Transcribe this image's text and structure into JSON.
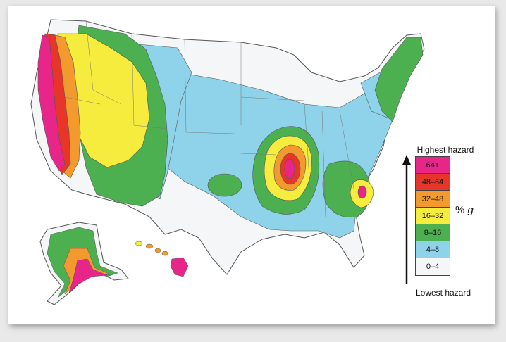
{
  "legend": {
    "top_label": "Highest hazard",
    "bottom_label": "Lowest hazard",
    "unit_prefix": "%",
    "unit_var": "g",
    "bins": [
      {
        "label": "64+",
        "color": "#e8268a"
      },
      {
        "label": "48–64",
        "color": "#e8352a"
      },
      {
        "label": "32–48",
        "color": "#f29a2e"
      },
      {
        "label": "16–32",
        "color": "#f6ec3e"
      },
      {
        "label": "8–16",
        "color": "#4caf50"
      },
      {
        "label": "4–8",
        "color": "#8fd3ea"
      },
      {
        "label": "0–4",
        "color": "#f4f6f8"
      }
    ]
  },
  "colors": {
    "border": "#555555",
    "background": "#ffffff"
  }
}
